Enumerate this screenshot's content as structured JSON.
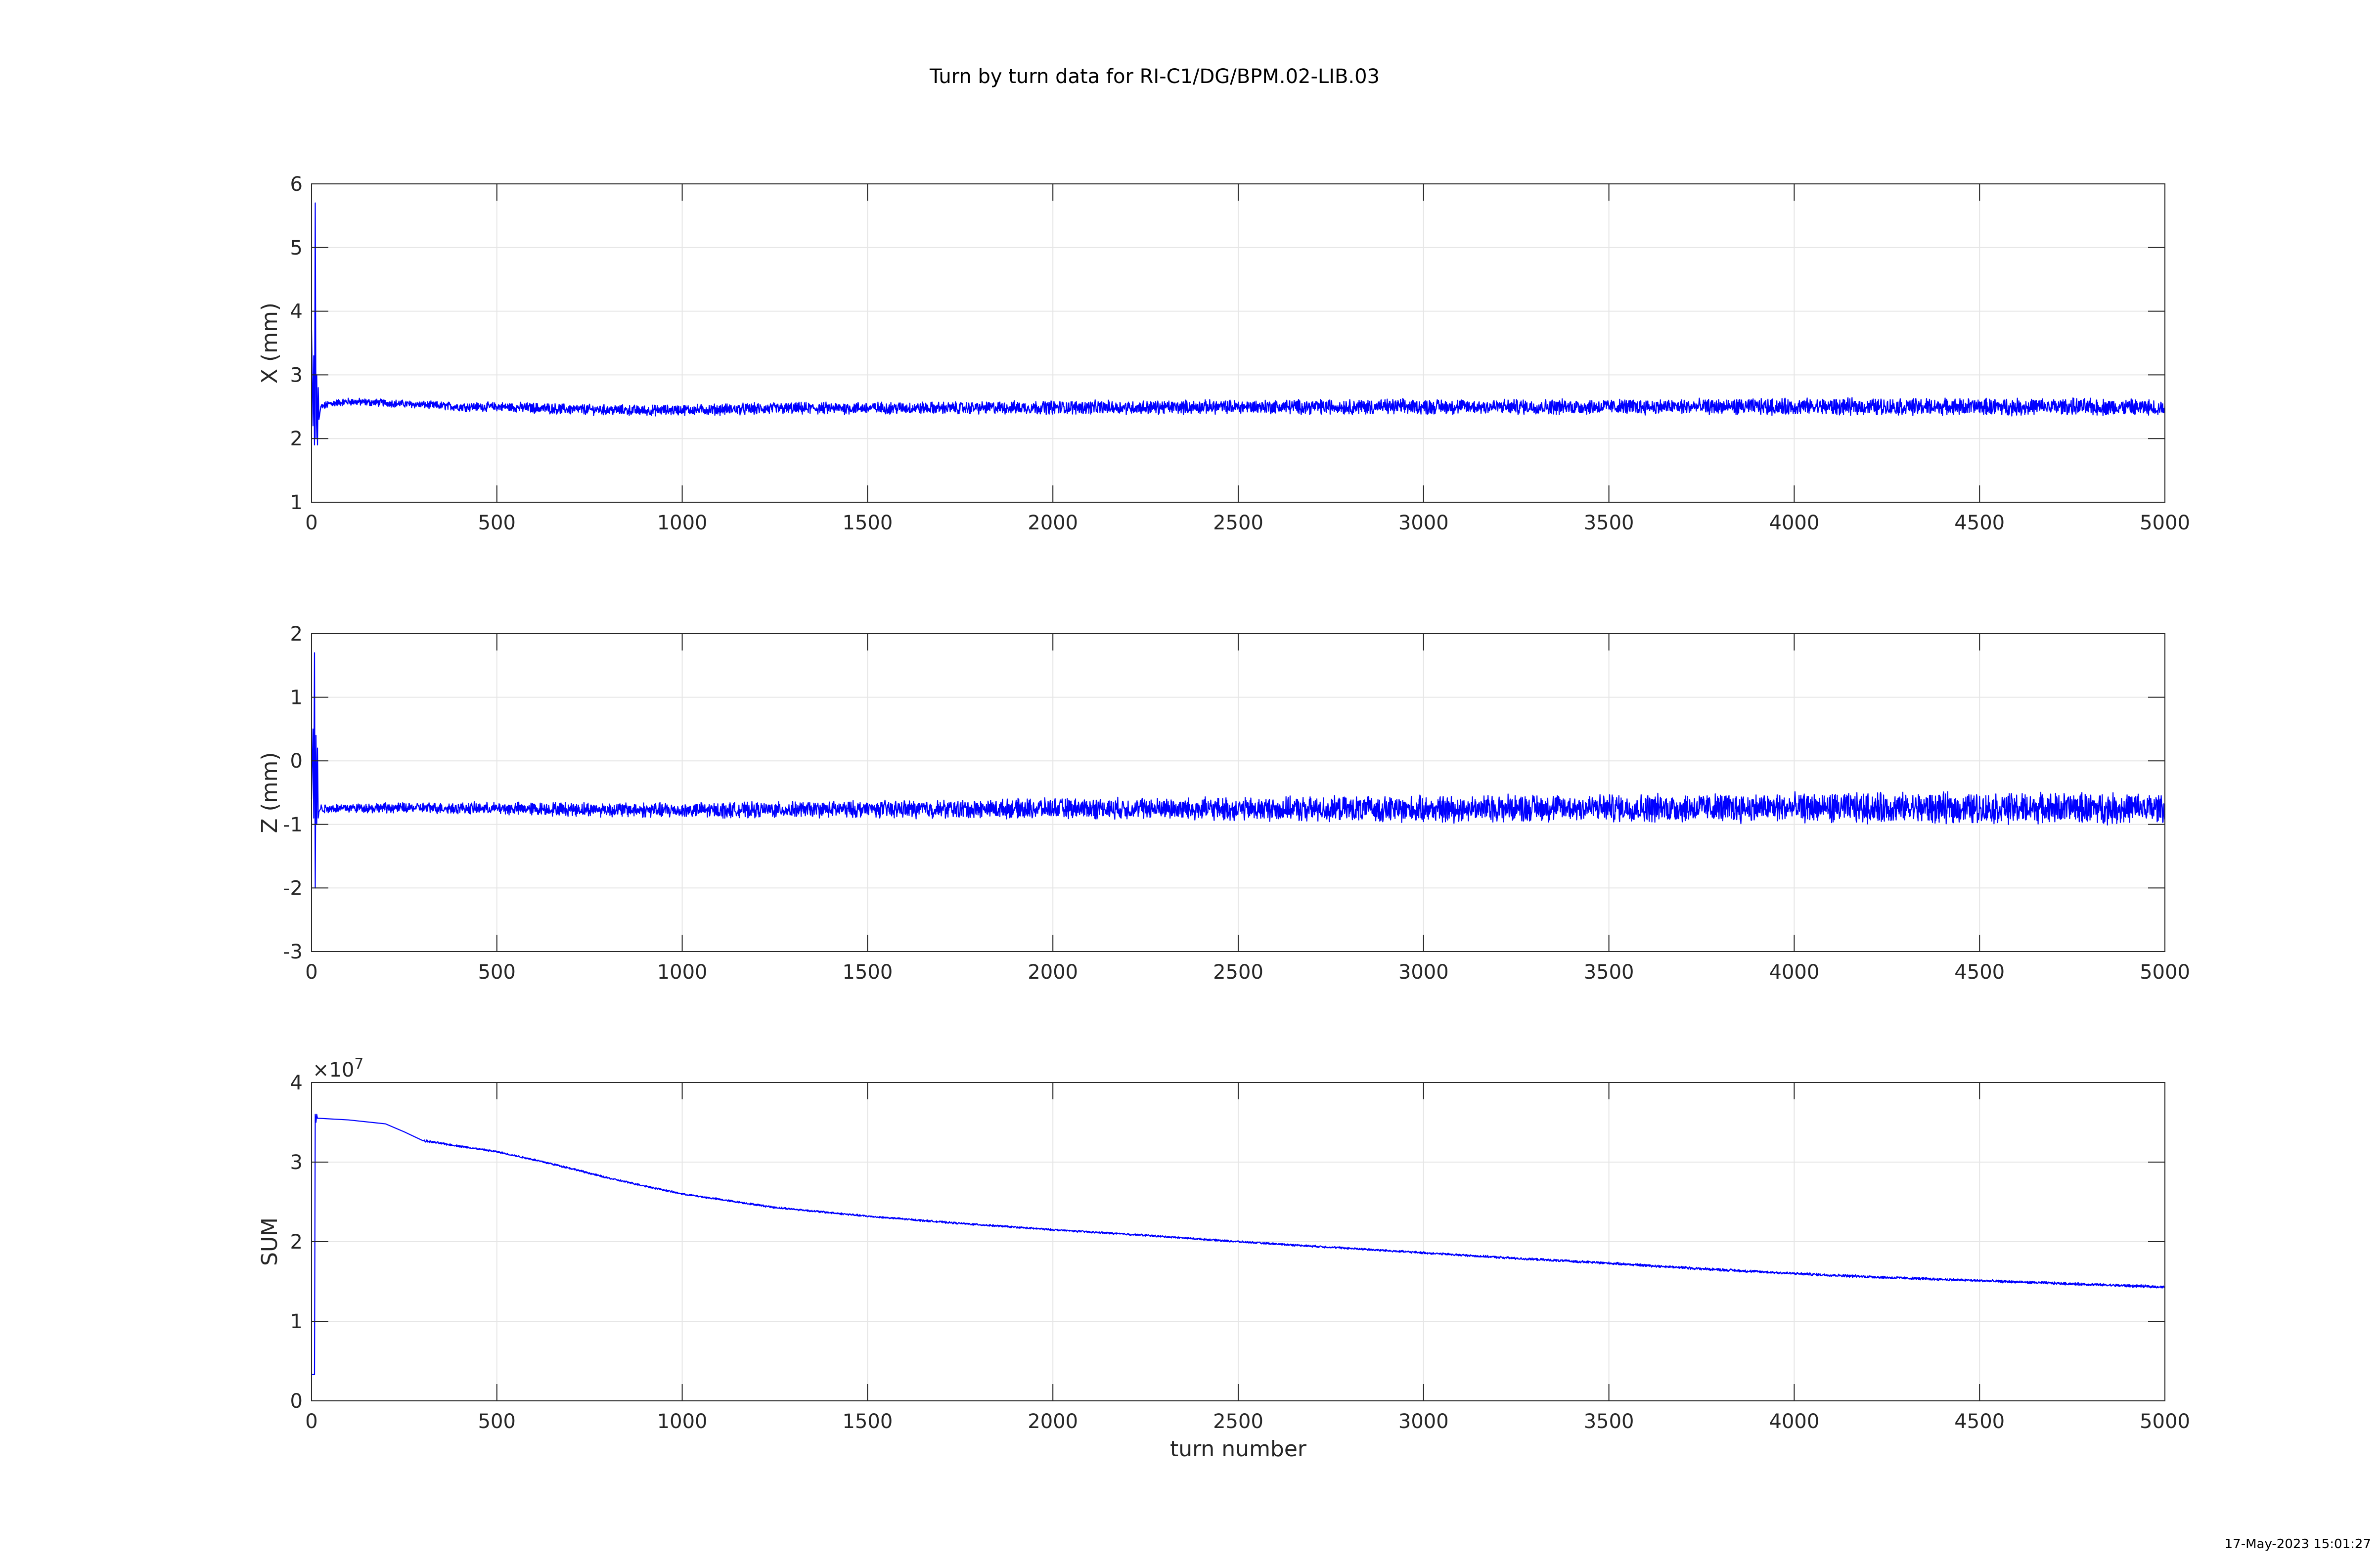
{
  "figure": {
    "title": "Turn by turn data for RI-C1/DG/BPM.02-LIB.03",
    "timestamp": "17-May-2023 15:01:27",
    "line_color": "#0000ff",
    "grid_color": "#e6e6e6",
    "axis_color": "#262626"
  },
  "chart_data": [
    {
      "type": "line",
      "ylabel": "X (mm)",
      "xlabel": "",
      "xlim": [
        0,
        5000
      ],
      "ylim": [
        1,
        6
      ],
      "xticks": [
        0,
        500,
        1000,
        1500,
        2000,
        2500,
        3000,
        3500,
        4000,
        4500,
        5000
      ],
      "yticks": [
        1,
        2,
        3,
        4,
        5,
        6
      ],
      "ytick_labels": [
        "1",
        "2",
        "3",
        "4",
        "5",
        "6"
      ],
      "exponent_label": "",
      "grid": true,
      "series": [
        {
          "color": "#0000ff",
          "x": [
            0,
            4,
            6,
            8,
            10,
            12,
            14,
            16,
            18,
            20,
            25,
            30,
            50,
            100,
            200,
            300,
            400,
            500,
            600,
            700,
            800,
            900,
            1000,
            1250,
            1500,
            1750,
            2000,
            2250,
            2500,
            2750,
            3000,
            3250,
            3500,
            3750,
            4000,
            4250,
            4500,
            4750,
            5000
          ],
          "y": [
            3.7,
            2.2,
            3.3,
            1.9,
            5.7,
            2.0,
            3.0,
            1.9,
            2.8,
            2.3,
            2.5,
            2.5,
            2.55,
            2.58,
            2.56,
            2.53,
            2.5,
            2.5,
            2.48,
            2.46,
            2.45,
            2.44,
            2.45,
            2.47,
            2.48,
            2.48,
            2.49,
            2.49,
            2.5,
            2.5,
            2.5,
            2.5,
            2.5,
            2.5,
            2.5,
            2.5,
            2.5,
            2.5,
            2.48
          ],
          "noise_amplitude": [
            0,
            0,
            0,
            0,
            0,
            0,
            0,
            0,
            0,
            0,
            0.05,
            0.05,
            0.05,
            0.05,
            0.05,
            0.05,
            0.06,
            0.06,
            0.07,
            0.07,
            0.07,
            0.07,
            0.07,
            0.08,
            0.08,
            0.08,
            0.09,
            0.09,
            0.09,
            0.1,
            0.1,
            0.1,
            0.1,
            0.1,
            0.11,
            0.11,
            0.11,
            0.11,
            0.11
          ]
        }
      ]
    },
    {
      "type": "line",
      "ylabel": "Z (mm)",
      "xlabel": "",
      "xlim": [
        0,
        5000
      ],
      "ylim": [
        -3,
        2
      ],
      "xticks": [
        0,
        500,
        1000,
        1500,
        2000,
        2500,
        3000,
        3500,
        4000,
        4500,
        5000
      ],
      "yticks": [
        -3,
        -2,
        -1,
        0,
        1,
        2
      ],
      "ytick_labels": [
        "-3",
        "-2",
        "-1",
        "0",
        "1",
        "2"
      ],
      "exponent_label": "",
      "grid": true,
      "series": [
        {
          "color": "#0000ff",
          "x": [
            0,
            4,
            6,
            8,
            10,
            12,
            14,
            16,
            18,
            20,
            25,
            30,
            100,
            300,
            500,
            700,
            1000,
            1250,
            1500,
            1750,
            2000,
            2250,
            2500,
            2750,
            3000,
            3250,
            3500,
            3750,
            4000,
            4250,
            4500,
            4750,
            5000
          ],
          "y": [
            -0.6,
            0.5,
            -0.9,
            1.7,
            -2.0,
            0.4,
            -1.0,
            0.2,
            -0.9,
            -0.8,
            -0.75,
            -0.75,
            -0.74,
            -0.74,
            -0.75,
            -0.76,
            -0.78,
            -0.77,
            -0.76,
            -0.76,
            -0.75,
            -0.75,
            -0.76,
            -0.76,
            -0.76,
            -0.74,
            -0.74,
            -0.74,
            -0.74,
            -0.74,
            -0.75,
            -0.74,
            -0.75
          ],
          "noise_amplitude": [
            0,
            0,
            0,
            0,
            0,
            0,
            0,
            0,
            0,
            0,
            0.06,
            0.06,
            0.06,
            0.07,
            0.08,
            0.09,
            0.1,
            0.1,
            0.11,
            0.12,
            0.13,
            0.14,
            0.15,
            0.16,
            0.17,
            0.18,
            0.18,
            0.19,
            0.19,
            0.2,
            0.2,
            0.2,
            0.2
          ]
        }
      ]
    },
    {
      "type": "line",
      "ylabel": "SUM",
      "xlabel": "turn number",
      "xlim": [
        0,
        5000
      ],
      "ylim": [
        0,
        40000000
      ],
      "xticks": [
        0,
        500,
        1000,
        1500,
        2000,
        2500,
        3000,
        3500,
        4000,
        4500,
        5000
      ],
      "yticks": [
        0,
        10000000,
        20000000,
        30000000,
        40000000
      ],
      "ytick_labels": [
        "0",
        "1",
        "2",
        "3",
        "4"
      ],
      "exponent_label": "×10^7",
      "grid": true,
      "series": [
        {
          "color": "#0000ff",
          "x": [
            0,
            8,
            10,
            12,
            14,
            16,
            20,
            100,
            200,
            250,
            300,
            400,
            500,
            600,
            700,
            800,
            900,
            1000,
            1250,
            1500,
            1750,
            2000,
            2250,
            2500,
            2750,
            3000,
            3250,
            3500,
            3750,
            4000,
            4250,
            4500,
            4750,
            5000
          ],
          "y": [
            3300000,
            3300000,
            36000000,
            35000000,
            36000000,
            35500000,
            35500000,
            35300000,
            34800000,
            33800000,
            32700000,
            32000000,
            31300000,
            30300000,
            29200000,
            28000000,
            27000000,
            26000000,
            24300000,
            23200000,
            22300000,
            21500000,
            20800000,
            20000000,
            19300000,
            18600000,
            17900000,
            17300000,
            16600000,
            16000000,
            15500000,
            15100000,
            14700000,
            14300000
          ],
          "noise_amplitude": [
            0,
            0,
            0,
            0,
            0,
            0,
            150000,
            150000,
            150000,
            120000,
            120000,
            100000,
            100000,
            100000,
            100000,
            100000,
            100000,
            100000,
            100000,
            100000,
            100000,
            100000,
            100000,
            100000,
            110000,
            110000,
            120000,
            130000,
            140000,
            140000,
            140000,
            140000,
            140000,
            140000
          ]
        }
      ]
    }
  ]
}
